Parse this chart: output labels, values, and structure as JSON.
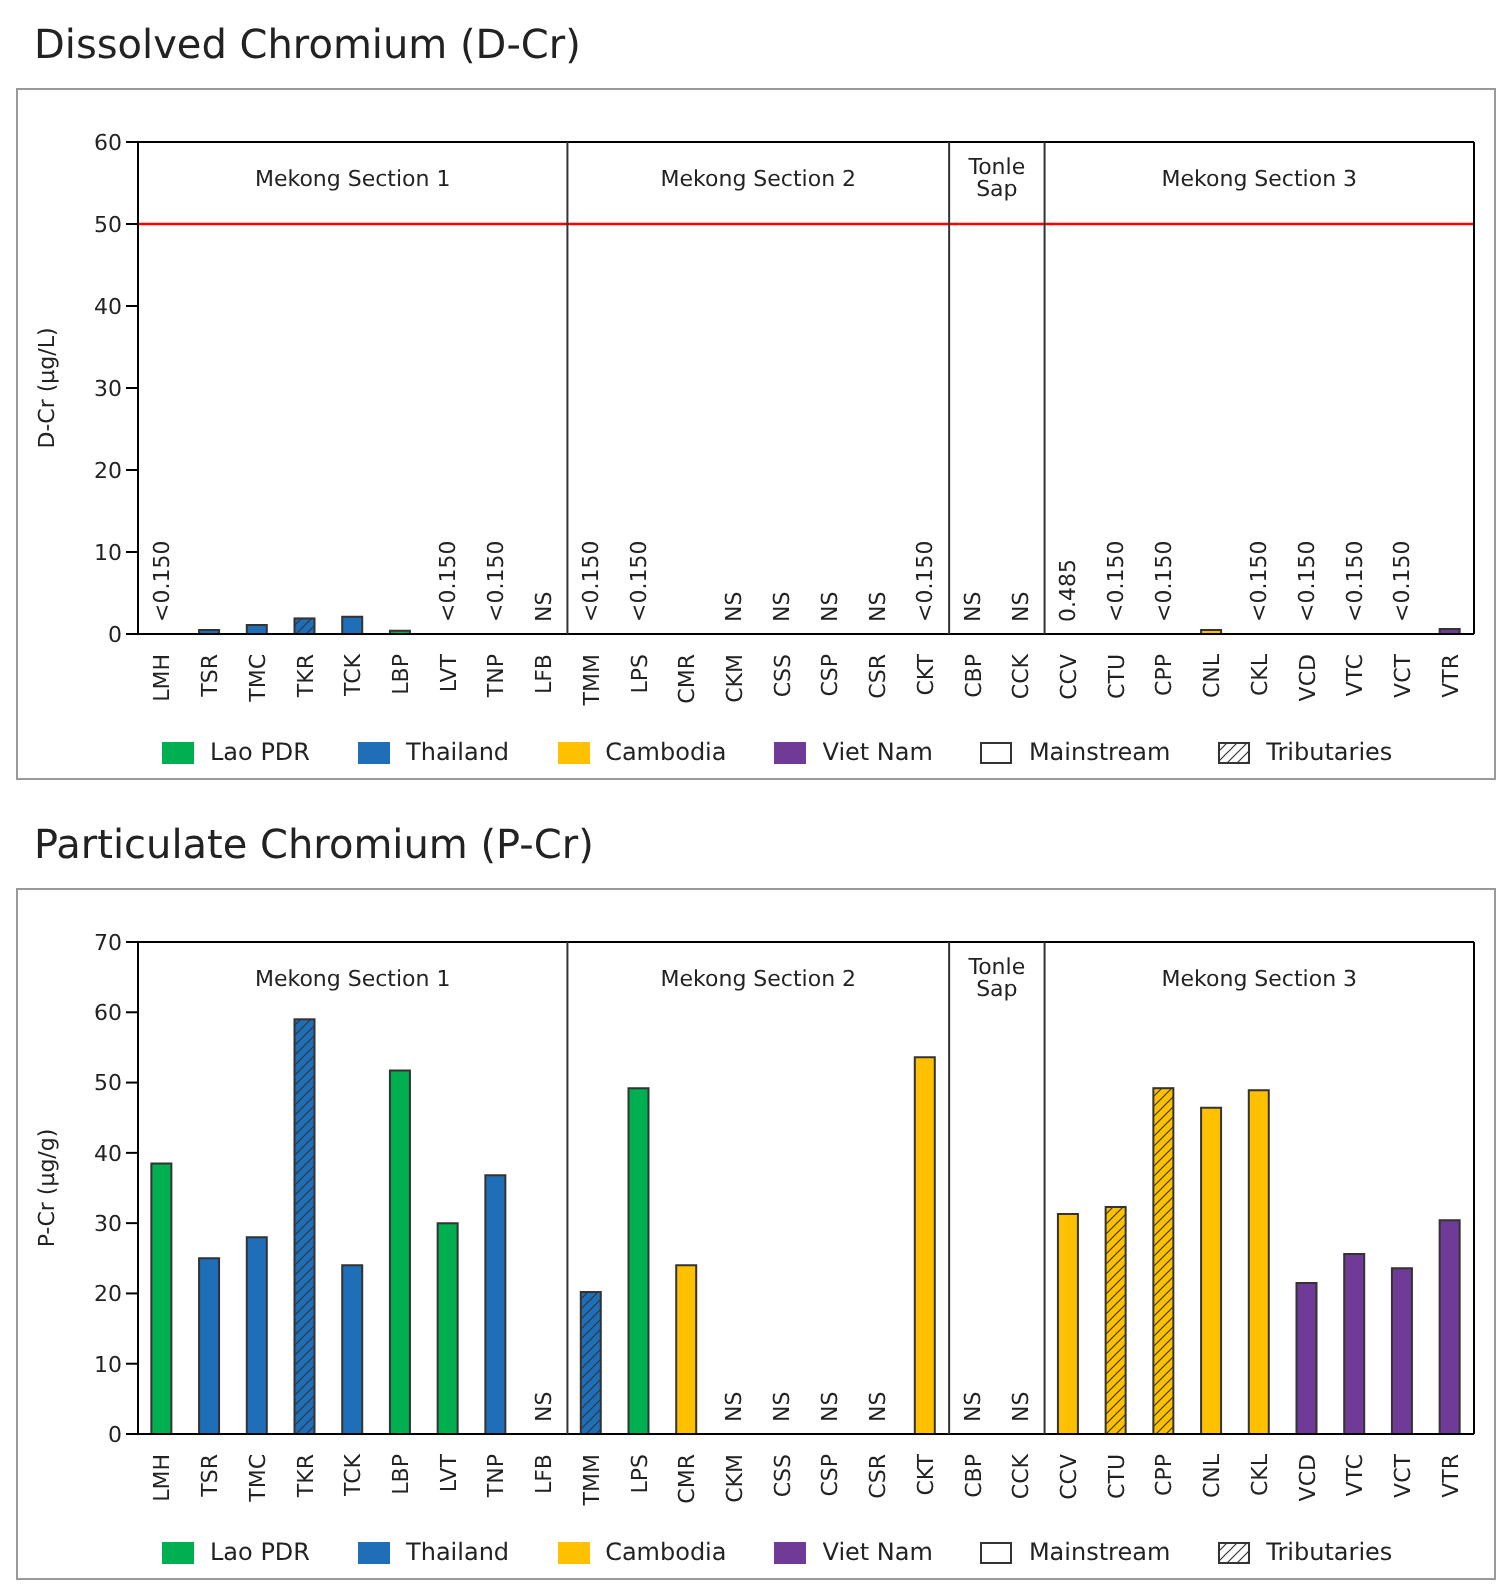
{
  "chart_data": [
    {
      "type": "bar",
      "title": "Dissolved Chromium (D-Cr)",
      "ylabel": "D-Cr (μg/L)",
      "categories": [
        "LMH",
        "TSR",
        "TMC",
        "TKR",
        "TCK",
        "LBP",
        "LVT",
        "TNP",
        "LFB",
        "TMM",
        "LPS",
        "CMR",
        "CKM",
        "CSS",
        "CSP",
        "CSR",
        "CKT",
        "CBP",
        "CCK",
        "CCV",
        "CTU",
        "CPP",
        "CNL",
        "CKL",
        "VCD",
        "VTC",
        "VCT",
        "VTR"
      ],
      "series": [
        {
          "name": "Lao PDR",
          "color": "#00b050",
          "values": [
            null,
            null,
            null,
            null,
            null,
            0.4,
            null,
            null,
            null,
            null,
            null,
            null,
            null,
            null,
            null,
            null,
            null,
            null,
            null,
            null,
            null,
            null,
            null,
            null,
            null,
            null,
            null,
            null
          ],
          "value_labels": [
            "<0.150",
            null,
            null,
            null,
            null,
            null,
            "<0.150",
            null,
            "NS",
            null,
            "<0.150",
            null,
            null,
            null,
            null,
            null,
            null,
            null,
            null,
            null,
            null,
            null,
            null,
            null,
            null,
            null,
            null,
            null
          ]
        },
        {
          "name": "Thailand",
          "color": "#1f6fb8",
          "values": [
            null,
            0.5,
            1.1,
            null,
            2.1,
            null,
            null,
            null,
            null,
            null,
            null,
            null,
            null,
            null,
            null,
            null,
            null,
            null,
            null,
            null,
            null,
            null,
            null,
            null,
            null,
            null,
            null,
            null
          ],
          "value_labels": [
            null,
            null,
            null,
            null,
            null,
            null,
            null,
            "<0.150",
            null,
            null,
            null,
            null,
            null,
            null,
            null,
            null,
            null,
            null,
            null,
            null,
            null,
            null,
            null,
            null,
            null,
            null,
            null,
            null
          ]
        },
        {
          "name": "Cambodia",
          "color": "#ffc000",
          "values": [
            null,
            null,
            null,
            null,
            null,
            null,
            null,
            null,
            null,
            null,
            null,
            null,
            null,
            null,
            null,
            null,
            null,
            null,
            null,
            null,
            null,
            null,
            0.5,
            null,
            null,
            null,
            null,
            null
          ],
          "value_labels": [
            null,
            null,
            null,
            null,
            null,
            null,
            null,
            null,
            null,
            null,
            null,
            null,
            "NS",
            "NS",
            "NS",
            "NS",
            "<0.150",
            "NS",
            "NS",
            "0.485",
            null,
            null,
            null,
            "<0.150",
            null,
            null,
            null,
            null
          ]
        },
        {
          "name": "Viet Nam",
          "color": "#6f3b96",
          "values": [
            null,
            null,
            null,
            null,
            null,
            null,
            null,
            null,
            null,
            null,
            null,
            null,
            null,
            null,
            null,
            null,
            null,
            null,
            null,
            null,
            null,
            null,
            null,
            null,
            null,
            null,
            null,
            0.6
          ],
          "value_labels": [
            null,
            null,
            null,
            null,
            null,
            null,
            null,
            null,
            null,
            null,
            null,
            null,
            null,
            null,
            null,
            null,
            null,
            null,
            null,
            null,
            null,
            null,
            null,
            null,
            "<0.150",
            "<0.150",
            "<0.150",
            null
          ]
        },
        {
          "colors": [
            null,
            null,
            null,
            "#1f6fb8",
            null,
            null,
            null,
            null,
            null,
            "#1f6fb8",
            null,
            null,
            null,
            null,
            null,
            null,
            null,
            null,
            null,
            null,
            "#ffc000",
            "#ffc000",
            null,
            null,
            null,
            null,
            null,
            null
          ],
          "values": [
            null,
            null,
            null,
            1.9,
            null,
            null,
            null,
            null,
            null,
            null,
            null,
            null,
            null,
            null,
            null,
            null,
            null,
            null,
            null,
            null,
            null,
            null,
            null,
            null,
            null,
            null,
            null,
            null
          ],
          "value_labels": [
            null,
            null,
            null,
            null,
            null,
            null,
            null,
            null,
            null,
            "<0.150",
            null,
            null,
            null,
            null,
            null,
            null,
            null,
            null,
            null,
            null,
            "<0.150",
            "<0.150",
            null,
            null,
            null,
            null,
            null,
            null
          ]
        }
      ],
      "stacked": true,
      "ylim": [
        0,
        60
      ],
      "yticks": [
        0,
        10,
        20,
        30,
        40,
        50,
        60
      ],
      "legend": "bottom",
      "ref_lines": [
        {
          "axis": "y",
          "value": 50,
          "color": "#ff0000"
        }
      ],
      "annotations": [
        "Mekong Section 1",
        "Mekong Section 2",
        "Tonle Sap",
        "Mekong Section 3",
        "Mainstream",
        "Tributaries"
      ]
    },
    {
      "type": "bar",
      "title": "Particulate Chromium (P-Cr)",
      "ylabel": "P-Cr (μg/g)",
      "categories": [
        "LMH",
        "TSR",
        "TMC",
        "TKR",
        "TCK",
        "LBP",
        "LVT",
        "TNP",
        "LFB",
        "TMM",
        "LPS",
        "CMR",
        "CKM",
        "CSS",
        "CSP",
        "CSR",
        "CKT",
        "CBP",
        "CCK",
        "CCV",
        "CTU",
        "CPP",
        "CNL",
        "CKL",
        "VCD",
        "VTC",
        "VCT",
        "VTR"
      ],
      "series": [
        {
          "name": "Lao PDR",
          "color": "#00b050",
          "values": [
            38.5,
            null,
            null,
            null,
            null,
            51.7,
            30,
            null,
            null,
            null,
            49.2,
            null,
            null,
            null,
            null,
            null,
            null,
            null,
            null,
            null,
            null,
            null,
            null,
            null,
            null,
            null,
            null,
            null
          ],
          "value_labels": [
            null,
            null,
            null,
            null,
            null,
            null,
            null,
            null,
            "NS",
            null,
            null,
            null,
            null,
            null,
            null,
            null,
            null,
            null,
            null,
            null,
            null,
            null,
            null,
            null,
            null,
            null,
            null,
            null
          ]
        },
        {
          "name": "Thailand",
          "color": "#1f6fb8",
          "values": [
            null,
            25,
            28,
            null,
            24,
            null,
            null,
            36.8,
            null,
            null,
            null,
            null,
            null,
            null,
            null,
            null,
            null,
            null,
            null,
            null,
            null,
            null,
            null,
            null,
            null,
            null,
            null,
            null
          ]
        },
        {
          "name": "Cambodia",
          "color": "#ffc000",
          "values": [
            null,
            null,
            null,
            null,
            null,
            null,
            null,
            null,
            null,
            null,
            null,
            24,
            null,
            null,
            null,
            null,
            53.6,
            null,
            null,
            31.3,
            null,
            null,
            46.4,
            48.9,
            null,
            null,
            null,
            null
          ],
          "value_labels": [
            null,
            null,
            null,
            null,
            null,
            null,
            null,
            null,
            null,
            null,
            null,
            null,
            "NS",
            "NS",
            "NS",
            "NS",
            null,
            "NS",
            "NS",
            null,
            null,
            null,
            null,
            null,
            null,
            null,
            null,
            null
          ]
        },
        {
          "name": "Viet Nam",
          "color": "#6f3b96",
          "values": [
            null,
            null,
            null,
            null,
            null,
            null,
            null,
            null,
            null,
            null,
            null,
            null,
            null,
            null,
            null,
            null,
            null,
            null,
            null,
            null,
            null,
            null,
            null,
            null,
            21.5,
            25.6,
            23.6,
            30.4
          ]
        },
        {
          "colors": [
            null,
            null,
            null,
            "#1f6fb8",
            null,
            null,
            null,
            null,
            null,
            "#1f6fb8",
            null,
            null,
            null,
            null,
            null,
            null,
            null,
            null,
            null,
            null,
            "#ffc000",
            "#ffc000",
            null,
            null,
            null,
            null,
            null,
            null
          ],
          "values": [
            null,
            null,
            null,
            59,
            null,
            null,
            null,
            null,
            null,
            20.2,
            null,
            null,
            null,
            null,
            null,
            null,
            null,
            null,
            null,
            null,
            32.3,
            49.2,
            null,
            null,
            null,
            null,
            null,
            null
          ]
        }
      ],
      "stacked": true,
      "ylim": [
        0,
        70
      ],
      "yticks": [
        0,
        10,
        20,
        30,
        40,
        50,
        60,
        70
      ],
      "legend": "bottom",
      "annotations": [
        "Mekong Section 1",
        "Mekong Section 2",
        "Tonle Sap",
        "Mekong Section 3",
        "Mainstream",
        "Tributaries"
      ]
    }
  ]
}
